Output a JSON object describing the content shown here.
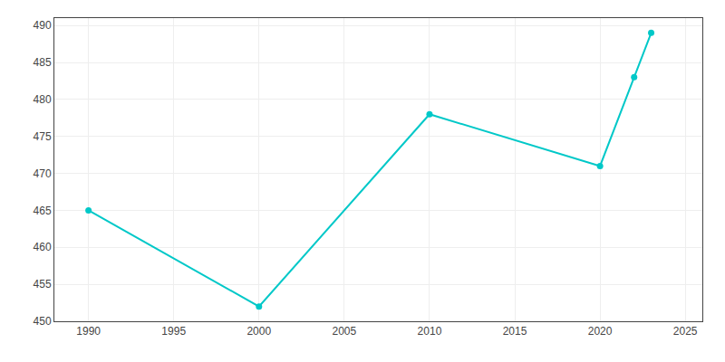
{
  "chart_data": {
    "type": "line",
    "x": [
      1990,
      2000,
      2010,
      2020,
      2022,
      2023
    ],
    "values": [
      465,
      452,
      478,
      471,
      483,
      489
    ],
    "color": "#00C8C8",
    "marker": "circle",
    "xlim": [
      1988,
      2026
    ],
    "ylim": [
      450,
      491
    ],
    "xticks": [
      1990,
      1995,
      2000,
      2005,
      2010,
      2015,
      2020,
      2025
    ],
    "yticks": [
      450,
      455,
      460,
      465,
      470,
      475,
      480,
      485,
      490
    ],
    "grid": true
  }
}
